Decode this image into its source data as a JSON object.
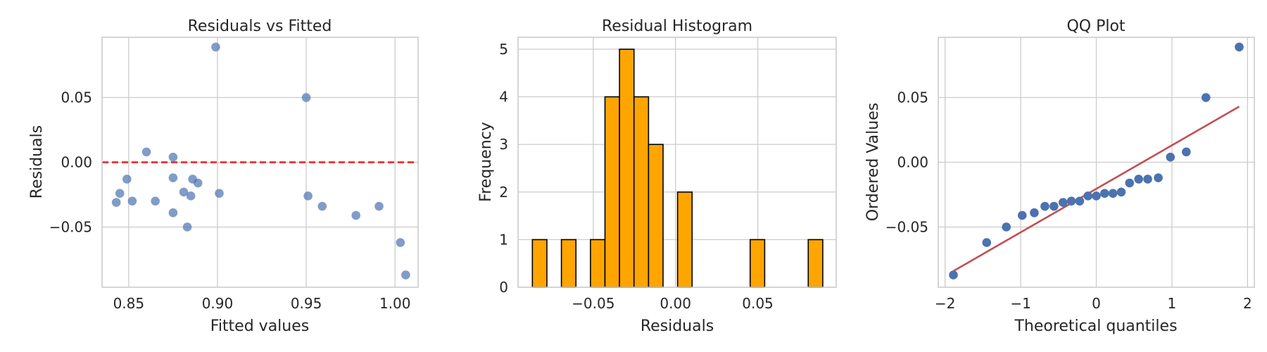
{
  "chart_data": [
    {
      "type": "scatter",
      "title": "Residuals vs Fitted",
      "xlabel": "Fitted values",
      "ylabel": "Residuals",
      "xlim": [
        0.835,
        1.013
      ],
      "ylim": [
        -0.0965,
        0.0965
      ],
      "xticks": [
        0.85,
        0.9,
        0.95,
        1.0
      ],
      "xtick_labels": [
        "0.85",
        "0.90",
        "0.95",
        "1.00"
      ],
      "yticks": [
        -0.05,
        0.0,
        0.05
      ],
      "ytick_labels": [
        "−0.05",
        "0.00",
        "0.05"
      ],
      "grid": true,
      "reference_line": {
        "y": 0.0,
        "style": "dashed",
        "color": "#ee1c1c"
      },
      "marker_color": "#4c72b0",
      "points": [
        {
          "x": 0.843,
          "y": -0.031
        },
        {
          "x": 0.845,
          "y": -0.024
        },
        {
          "x": 0.849,
          "y": -0.013
        },
        {
          "x": 0.852,
          "y": -0.03
        },
        {
          "x": 0.86,
          "y": 0.008
        },
        {
          "x": 0.865,
          "y": -0.03
        },
        {
          "x": 0.875,
          "y": 0.004
        },
        {
          "x": 0.875,
          "y": -0.012
        },
        {
          "x": 0.875,
          "y": -0.039
        },
        {
          "x": 0.881,
          "y": -0.023
        },
        {
          "x": 0.883,
          "y": -0.05
        },
        {
          "x": 0.885,
          "y": -0.026
        },
        {
          "x": 0.886,
          "y": -0.013
        },
        {
          "x": 0.889,
          "y": -0.016
        },
        {
          "x": 0.899,
          "y": 0.089
        },
        {
          "x": 0.901,
          "y": -0.024
        },
        {
          "x": 0.95,
          "y": 0.05
        },
        {
          "x": 0.951,
          "y": -0.026
        },
        {
          "x": 0.959,
          "y": -0.034
        },
        {
          "x": 0.978,
          "y": -0.041
        },
        {
          "x": 0.991,
          "y": -0.034
        },
        {
          "x": 1.003,
          "y": -0.062
        },
        {
          "x": 1.006,
          "y": -0.087
        }
      ]
    },
    {
      "type": "bar",
      "title": "Residual Histogram",
      "xlabel": "Residuals",
      "ylabel": "Frequency",
      "xlim": [
        -0.0957,
        0.0977
      ],
      "ylim": [
        0,
        5.25
      ],
      "xticks": [
        -0.05,
        0.0,
        0.05
      ],
      "xtick_labels": [
        "−0.05",
        "0.00",
        "0.05"
      ],
      "yticks": [
        0,
        1,
        2,
        3,
        4,
        5
      ],
      "ytick_labels": [
        "0",
        "1",
        "2",
        "3",
        "4",
        "5"
      ],
      "grid": true,
      "bar_color": "#ffa500",
      "edge_color": "#000000",
      "bin_start": -0.087,
      "bin_width": 0.008826,
      "counts": [
        1,
        0,
        1,
        0,
        1,
        4,
        5,
        4,
        3,
        0,
        2,
        0,
        0,
        0,
        0,
        1,
        0,
        0,
        0,
        1
      ]
    },
    {
      "type": "scatter",
      "title": "QQ Plot",
      "xlabel": "Theoretical quantiles",
      "ylabel": "Ordered Values",
      "xlim": [
        -2.09,
        2.09
      ],
      "ylim": [
        -0.0965,
        0.0965
      ],
      "xticks": [
        -2,
        -1,
        0,
        1,
        2
      ],
      "xtick_labels": [
        "−2",
        "−1",
        "0",
        "1",
        "2"
      ],
      "yticks": [
        -0.05,
        0.0,
        0.05
      ],
      "ytick_labels": [
        "−0.05",
        "0.00",
        "0.05"
      ],
      "grid": true,
      "marker_color": "#4c72b0",
      "fit_line": {
        "x": [
          -1.89,
          1.89
        ],
        "y": [
          -0.084,
          0.043
        ],
        "color": "#c44e52"
      },
      "points": [
        {
          "x": -1.89,
          "y": -0.087
        },
        {
          "x": -1.45,
          "y": -0.062
        },
        {
          "x": -1.19,
          "y": -0.05
        },
        {
          "x": -0.98,
          "y": -0.041
        },
        {
          "x": -0.82,
          "y": -0.039
        },
        {
          "x": -0.68,
          "y": -0.034
        },
        {
          "x": -0.56,
          "y": -0.034
        },
        {
          "x": -0.44,
          "y": -0.031
        },
        {
          "x": -0.33,
          "y": -0.03
        },
        {
          "x": -0.22,
          "y": -0.03
        },
        {
          "x": -0.11,
          "y": -0.026
        },
        {
          "x": 0.0,
          "y": -0.026
        },
        {
          "x": 0.11,
          "y": -0.024
        },
        {
          "x": 0.22,
          "y": -0.024
        },
        {
          "x": 0.33,
          "y": -0.023
        },
        {
          "x": 0.44,
          "y": -0.016
        },
        {
          "x": 0.56,
          "y": -0.013
        },
        {
          "x": 0.68,
          "y": -0.013
        },
        {
          "x": 0.82,
          "y": -0.012
        },
        {
          "x": 0.98,
          "y": 0.004
        },
        {
          "x": 1.19,
          "y": 0.008
        },
        {
          "x": 1.45,
          "y": 0.05
        },
        {
          "x": 1.89,
          "y": 0.089
        }
      ]
    }
  ]
}
